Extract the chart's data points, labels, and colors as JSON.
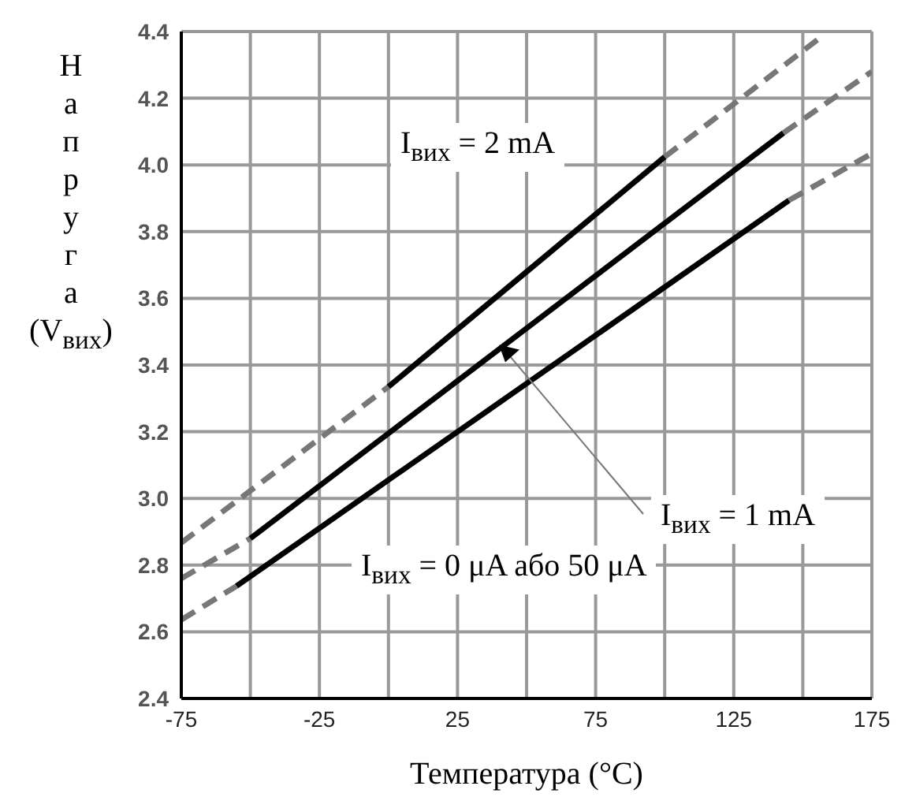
{
  "chart_data": {
    "type": "line",
    "xlabel": "Температура (°C)",
    "ylabel": "Напруга (V$_{вих}$)",
    "xlim": [
      -75,
      175
    ],
    "xticks": [
      -75,
      {
        "value": -50,
        "label": null
      },
      -25,
      {
        "value": 0,
        "label": null
      },
      25,
      {
        "value": 50,
        "label": null
      },
      75,
      {
        "value": 100,
        "label": null
      },
      125,
      {
        "value": 150,
        "label": null
      },
      175
    ],
    "ylim": [
      2.4,
      4.4
    ],
    "yticks": [
      2.4,
      2.6,
      2.8,
      {
        "value": 3,
        "label": "3.0"
      },
      3.2,
      3.4,
      3.6,
      3.8,
      {
        "value": 4,
        "label": "4.0"
      },
      4.2,
      4.4
    ],
    "grid": true,
    "marker": "none",
    "series": [
      {
        "color": "#777777",
        "line_style": "dashed",
        "x": [
          -75,
          0
        ],
        "values": [
          2.867,
          3.335
        ]
      },
      {
        "color": "#000000",
        "line_style": "solid",
        "x": [
          0,
          100
        ],
        "values": [
          3.335,
          4.024
        ]
      },
      {
        "color": "#777777",
        "line_style": "dashed",
        "x": [
          100,
          157
        ],
        "values": [
          4.024,
          4.386
        ]
      },
      {
        "color": "#777777",
        "line_style": "dashed",
        "x": [
          -75,
          -50
        ],
        "values": [
          2.76,
          2.88
        ]
      },
      {
        "color": "#000000",
        "line_style": "solid",
        "x": [
          -50,
          143
        ],
        "values": [
          2.88,
          4.096
        ]
      },
      {
        "color": "#777777",
        "line_style": "dashed",
        "x": [
          143,
          175
        ],
        "values": [
          4.096,
          4.28
        ]
      },
      {
        "color": "#777777",
        "line_style": "dashed",
        "x": [
          -75,
          -55
        ],
        "values": [
          2.636,
          2.737
        ]
      },
      {
        "color": "#000000",
        "line_style": "solid",
        "x": [
          -55,
          145
        ],
        "values": [
          2.737,
          3.894
        ]
      },
      {
        "color": "#777777",
        "line_style": "dashed",
        "x": [
          145,
          175
        ],
        "values": [
          3.894,
          4.034
        ]
      }
    ],
    "annotations": [
      "I$_{вих}$ = 2 mA",
      {
        "text": "I$_{вих}$ = 1 mA",
        "x": 40,
        "y": 3.46
      },
      "I$_{вих}$ = 0 μA або 50 μA"
    ]
  }
}
